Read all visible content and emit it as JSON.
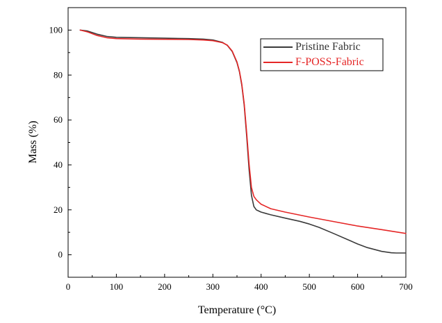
{
  "chart_data": {
    "type": "line",
    "title": "",
    "xlabel": "Temperature (°C)",
    "ylabel": "Mass (%)",
    "xlim": [
      0,
      700
    ],
    "ylim": [
      -10,
      110
    ],
    "x_ticks": [
      0,
      100,
      200,
      300,
      400,
      500,
      600,
      700
    ],
    "y_ticks": [
      0,
      20,
      40,
      60,
      80,
      100
    ],
    "grid": false,
    "legend_position": "top-right",
    "series": [
      {
        "name": "Pristine Fabric",
        "color": "#3a3a3a",
        "x": [
          25,
          40,
          60,
          80,
          100,
          150,
          200,
          250,
          280,
          300,
          320,
          330,
          340,
          350,
          355,
          360,
          365,
          370,
          375,
          380,
          385,
          390,
          395,
          400,
          420,
          450,
          480,
          500,
          520,
          550,
          580,
          600,
          620,
          650,
          670,
          680,
          700
        ],
        "y": [
          100,
          99.6,
          98.2,
          97.2,
          96.8,
          96.6,
          96.4,
          96.2,
          96.0,
          95.6,
          94.5,
          93.2,
          90.5,
          85.5,
          81.5,
          75.5,
          66.5,
          53.0,
          38.0,
          26.5,
          21.5,
          20.0,
          19.5,
          19.0,
          17.8,
          16.3,
          14.9,
          13.7,
          12.2,
          9.5,
          6.7,
          4.8,
          3.2,
          1.5,
          0.9,
          0.8,
          0.8
        ]
      },
      {
        "name": "F-POSS-Fabric",
        "color": "#e52626",
        "x": [
          25,
          40,
          60,
          80,
          100,
          150,
          200,
          250,
          280,
          300,
          320,
          330,
          340,
          350,
          355,
          360,
          365,
          370,
          375,
          380,
          385,
          390,
          395,
          400,
          420,
          450,
          500,
          550,
          600,
          650,
          700
        ],
        "y": [
          100,
          99.2,
          97.6,
          96.6,
          96.2,
          96.0,
          95.9,
          95.8,
          95.6,
          95.3,
          94.4,
          93.3,
          90.7,
          85.8,
          81.8,
          76.0,
          67.2,
          54.5,
          40.5,
          30.0,
          26.0,
          24.5,
          23.5,
          22.5,
          20.5,
          19.0,
          16.8,
          14.8,
          12.8,
          11.2,
          9.5
        ]
      }
    ]
  }
}
